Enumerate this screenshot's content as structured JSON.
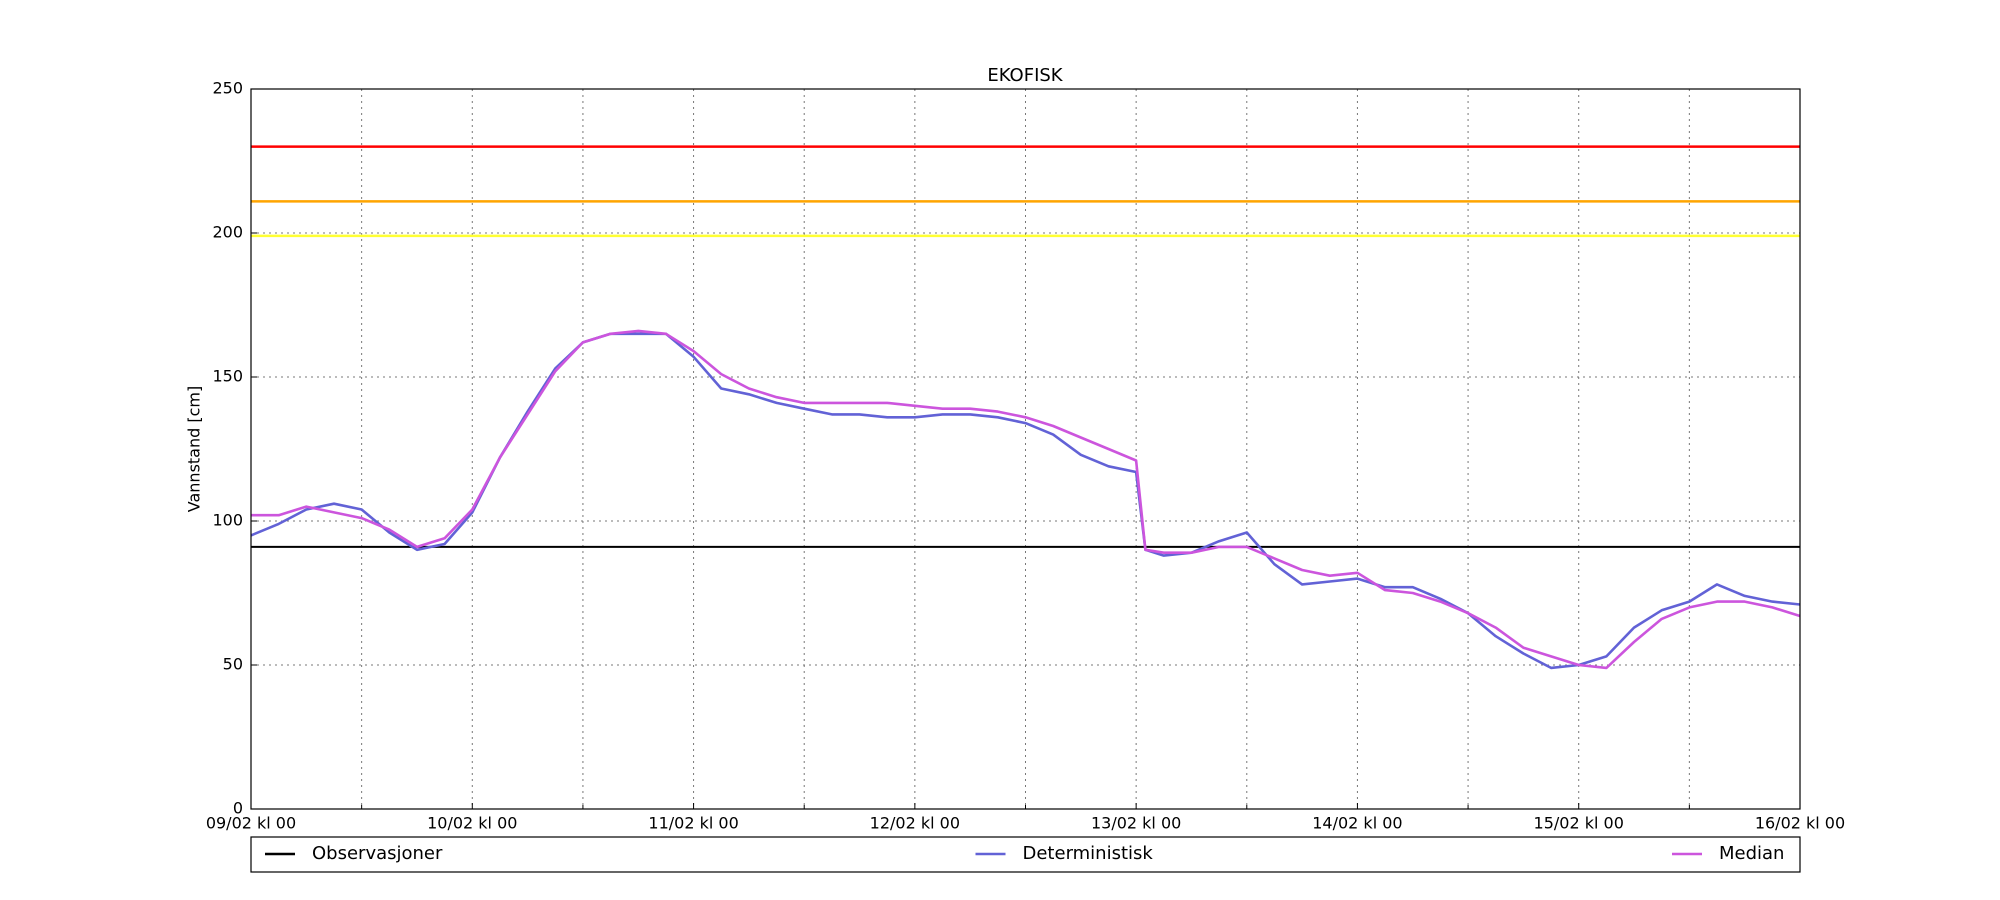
{
  "chart_data": {
    "type": "line",
    "title": "EKOFISK",
    "ylabel": "Vannstand [cm]",
    "x": [
      "09/02 kl 00",
      "09/02 kl 03",
      "09/02 kl 06",
      "09/02 kl 09",
      "09/02 kl 12",
      "09/02 kl 15",
      "09/02 kl 18",
      "09/02 kl 21",
      "10/02 kl 00",
      "10/02 kl 03",
      "10/02 kl 06",
      "10/02 kl 09",
      "10/02 kl 12",
      "10/02 kl 15",
      "10/02 kl 18",
      "10/02 kl 21",
      "11/02 kl 00",
      "11/02 kl 03",
      "11/02 kl 06",
      "11/02 kl 09",
      "11/02 kl 12",
      "11/02 kl 15",
      "11/02 kl 18",
      "11/02 kl 21",
      "12/02 kl 00",
      "12/02 kl 03",
      "12/02 kl 06",
      "12/02 kl 09",
      "12/02 kl 12",
      "12/02 kl 15",
      "12/02 kl 18",
      "12/02 kl 21",
      "13/02 kl 00",
      "13/02 kl 01",
      "13/02 kl 03",
      "13/02 kl 06",
      "13/02 kl 09",
      "13/02 kl 12",
      "13/02 kl 15",
      "13/02 kl 18",
      "13/02 kl 21",
      "14/02 kl 00",
      "14/02 kl 03",
      "14/02 kl 06",
      "14/02 kl 09",
      "14/02 kl 12",
      "14/02 kl 15",
      "14/02 kl 18",
      "14/02 kl 21",
      "15/02 kl 00",
      "15/02 kl 03",
      "15/02 kl 06",
      "15/02 kl 09",
      "15/02 kl 12",
      "15/02 kl 15",
      "15/02 kl 18",
      "15/02 kl 21",
      "16/02 kl 00"
    ],
    "series": [
      {
        "name": "Observasjoner",
        "color": "#000000",
        "x": [
          "09/02 kl 00",
          "16/02 kl 00"
        ],
        "values": [
          91,
          91
        ]
      },
      {
        "name": "Deterministisk",
        "color": "#6262d6",
        "values": [
          95,
          99,
          104,
          106,
          104,
          96,
          90,
          92,
          103,
          122,
          138,
          153,
          162,
          165,
          165,
          165,
          157,
          146,
          144,
          141,
          139,
          137,
          137,
          136,
          136,
          137,
          137,
          136,
          134,
          130,
          123,
          119,
          117,
          90,
          88,
          89,
          93,
          96,
          85,
          78,
          79,
          80,
          77,
          77,
          73,
          68,
          60,
          54,
          49,
          50,
          53,
          63,
          69,
          72,
          78,
          74,
          72,
          71
        ]
      },
      {
        "name": "Median",
        "color": "#cc55dd",
        "values": [
          102,
          102,
          105,
          103,
          101,
          97,
          91,
          94,
          104,
          122,
          137,
          152,
          162,
          165,
          166,
          165,
          159,
          151,
          146,
          143,
          141,
          141,
          141,
          141,
          140,
          139,
          139,
          138,
          136,
          133,
          129,
          125,
          121,
          90,
          89,
          89,
          91,
          91,
          87,
          83,
          81,
          82,
          76,
          75,
          72,
          68,
          63,
          56,
          53,
          50,
          49,
          58,
          66,
          70,
          72,
          72,
          70,
          67
        ]
      }
    ],
    "hlines": [
      {
        "value": 230,
        "color": "#ff0000"
      },
      {
        "value": 211,
        "color": "#ffa500"
      },
      {
        "value": 199,
        "color": "#ffff33"
      }
    ],
    "xlim": [
      "09/02 kl 00",
      "16/02 kl 00"
    ],
    "xticks": [
      "09/02 kl 00",
      "10/02 kl 00",
      "11/02 kl 00",
      "12/02 kl 00",
      "13/02 kl 00",
      "14/02 kl 00",
      "15/02 kl 00",
      "16/02 kl 00"
    ],
    "ylim": [
      0,
      250
    ],
    "yticks": [
      0,
      50,
      100,
      150,
      200,
      250
    ],
    "grid": true,
    "legend": "bottom"
  }
}
